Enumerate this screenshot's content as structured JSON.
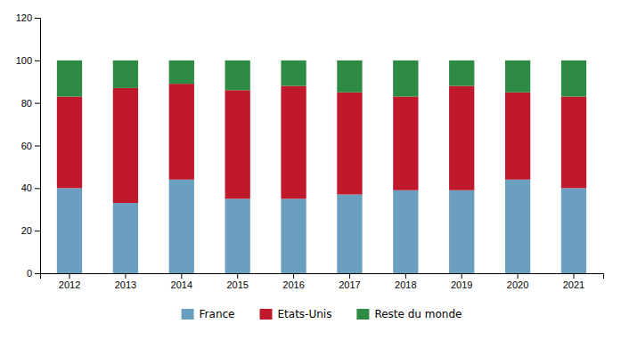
{
  "chart_data": {
    "type": "bar",
    "stacked": true,
    "categories": [
      "2012",
      "2013",
      "2014",
      "2015",
      "2016",
      "2017",
      "2018",
      "2019",
      "2020",
      "2021"
    ],
    "series": [
      {
        "name": "France",
        "color": "#6a9fc0",
        "values": [
          40,
          33,
          44,
          35,
          35,
          37,
          39,
          39,
          44,
          40
        ]
      },
      {
        "name": "Etats-Unis",
        "color": "#c0192c",
        "values": [
          43,
          54,
          45,
          51,
          53,
          48,
          44,
          49,
          41,
          43
        ]
      },
      {
        "name": "Reste du monde",
        "color": "#2e8b44",
        "values": [
          17,
          13,
          11,
          14,
          12,
          15,
          17,
          12,
          15,
          17
        ]
      }
    ],
    "ylim": [
      0,
      120
    ],
    "yticks": [
      0,
      20,
      40,
      60,
      80,
      100,
      120
    ],
    "grid": false,
    "legend": "bottom"
  }
}
